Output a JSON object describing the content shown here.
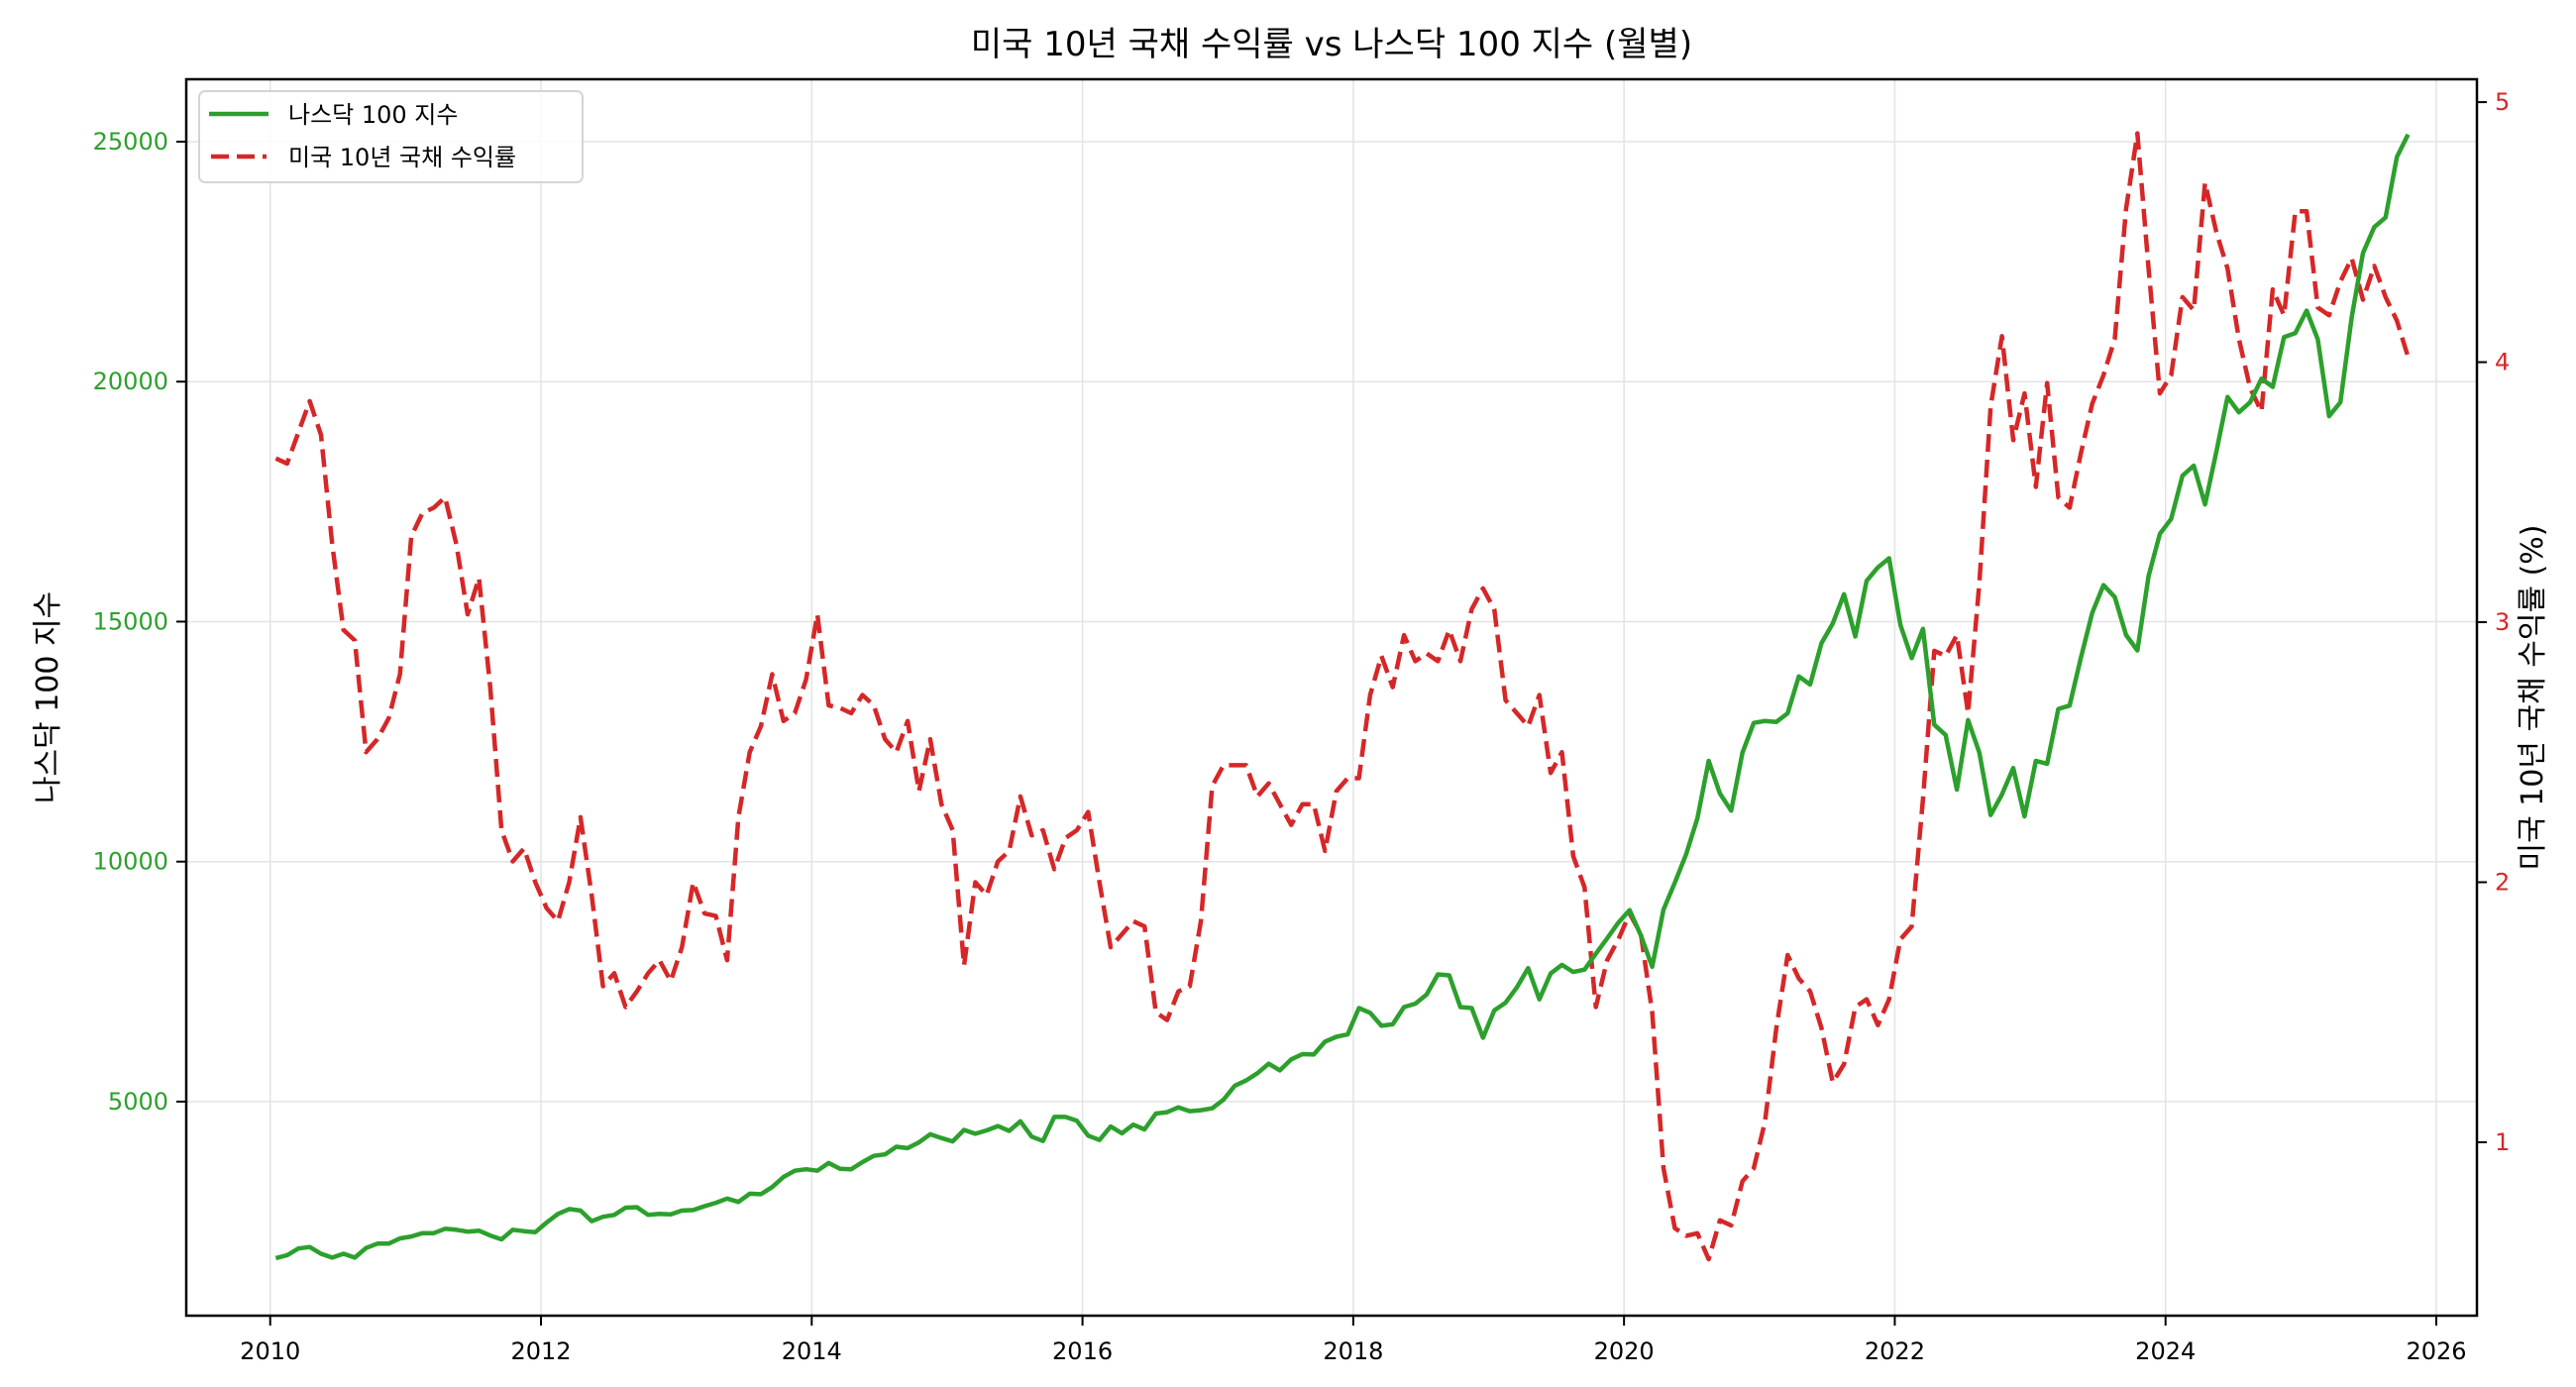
{
  "chart_data": {
    "type": "line",
    "title": "미국 10년 국채 수익률 vs 나스닥 100 지수 (월별)",
    "xlabel": "",
    "ylabel_left": "나스닥 100 지수",
    "ylabel_right": "미국 10년 국채 수익률 (%)",
    "x_start": "2010-01",
    "x_frequency": "monthly",
    "xlim": [
      2009.38,
      2026.3
    ],
    "ylim_left": [
      540,
      26300
    ],
    "ylim_right": [
      0.333,
      5.088
    ],
    "x_ticks": [
      2010,
      2012,
      2014,
      2016,
      2018,
      2020,
      2022,
      2024,
      2026
    ],
    "y_ticks_left": [
      5000,
      10000,
      15000,
      20000,
      25000
    ],
    "y_ticks_right": [
      1,
      2,
      3,
      4,
      5
    ],
    "grid": true,
    "legend_position": "upper left",
    "colors": {
      "nasdaq": "#2ca02c",
      "treasury": "#d62728"
    },
    "series": [
      {
        "name": "나스닥 100 지수",
        "axis": "left",
        "style": "solid",
        "color": "#2ca02c",
        "values": [
          1740,
          1800,
          1940,
          1970,
          1830,
          1750,
          1830,
          1750,
          1950,
          2040,
          2040,
          2150,
          2190,
          2260,
          2260,
          2350,
          2330,
          2290,
          2310,
          2210,
          2130,
          2330,
          2300,
          2280,
          2480,
          2660,
          2760,
          2730,
          2510,
          2600,
          2640,
          2790,
          2800,
          2640,
          2660,
          2650,
          2730,
          2740,
          2820,
          2890,
          2980,
          2910,
          3080,
          3070,
          3220,
          3430,
          3560,
          3590,
          3560,
          3720,
          3600,
          3590,
          3740,
          3870,
          3900,
          4060,
          4030,
          4150,
          4320,
          4240,
          4170,
          4410,
          4330,
          4400,
          4490,
          4390,
          4590,
          4270,
          4180,
          4680,
          4680,
          4600,
          4290,
          4200,
          4480,
          4340,
          4520,
          4420,
          4750,
          4780,
          4880,
          4800,
          4820,
          4860,
          5040,
          5330,
          5440,
          5590,
          5790,
          5650,
          5880,
          5990,
          5980,
          6250,
          6350,
          6400,
          6950,
          6850,
          6580,
          6610,
          6970,
          7040,
          7230,
          7650,
          7630,
          6970,
          6950,
          6330,
          6900,
          7060,
          7380,
          7780,
          7130,
          7670,
          7850,
          7700,
          7750,
          8080,
          8400,
          8730,
          8990,
          8460,
          7810,
          9000,
          9560,
          10150,
          10900,
          12100,
          11420,
          11060,
          12270,
          12890,
          12930,
          12910,
          13090,
          13860,
          13690,
          14550,
          14960,
          15570,
          14690,
          15850,
          16130,
          16320,
          14930,
          14240,
          14850,
          12850,
          12640,
          11500,
          12950,
          12270,
          10970,
          11400,
          11950,
          10940,
          12100,
          12040,
          13180,
          13250,
          14250,
          15180,
          15760,
          15510,
          14720,
          14400,
          15950,
          16830,
          17140,
          18040,
          18250,
          17440,
          18540,
          19680,
          19360,
          19570,
          20060,
          19890,
          20930,
          21010,
          21480,
          20880,
          19280,
          19570,
          21340,
          22680,
          23220,
          23420,
          24680,
          25150
        ]
      },
      {
        "name": "미국 10년 국채 수익률",
        "axis": "right",
        "style": "dashed",
        "color": "#d62728",
        "values": [
          3.63,
          3.61,
          3.73,
          3.85,
          3.72,
          3.3,
          2.97,
          2.93,
          2.5,
          2.55,
          2.63,
          2.8,
          3.33,
          3.42,
          3.44,
          3.48,
          3.3,
          3.03,
          3.17,
          2.75,
          2.2,
          2.08,
          2.13,
          2.0,
          1.9,
          1.85,
          2.0,
          2.25,
          1.95,
          1.6,
          1.65,
          1.52,
          1.58,
          1.65,
          1.7,
          1.62,
          1.75,
          2.0,
          1.88,
          1.87,
          1.7,
          2.25,
          2.5,
          2.6,
          2.8,
          2.62,
          2.65,
          2.78,
          3.03,
          2.68,
          2.67,
          2.65,
          2.72,
          2.68,
          2.55,
          2.5,
          2.62,
          2.35,
          2.55,
          2.3,
          2.2,
          1.68,
          2.0,
          1.95,
          2.08,
          2.12,
          2.33,
          2.18,
          2.2,
          2.05,
          2.17,
          2.2,
          2.27,
          2.0,
          1.75,
          1.8,
          1.85,
          1.83,
          1.5,
          1.47,
          1.58,
          1.6,
          1.85,
          2.37,
          2.45,
          2.45,
          2.45,
          2.33,
          2.38,
          2.3,
          2.22,
          2.3,
          2.3,
          2.12,
          2.35,
          2.4,
          2.4,
          2.72,
          2.87,
          2.75,
          2.95,
          2.85,
          2.88,
          2.85,
          2.97,
          2.85,
          3.05,
          3.13,
          3.05,
          2.7,
          2.65,
          2.6,
          2.72,
          2.42,
          2.5,
          2.1,
          1.98,
          1.52,
          1.7,
          1.78,
          1.88,
          1.8,
          1.5,
          0.9,
          0.67,
          0.64,
          0.65,
          0.55,
          0.7,
          0.68,
          0.85,
          0.9,
          1.08,
          1.44,
          1.72,
          1.63,
          1.58,
          1.44,
          1.23,
          1.3,
          1.52,
          1.55,
          1.45,
          1.55,
          1.78,
          1.83,
          2.32,
          2.89,
          2.87,
          2.95,
          2.65,
          3.15,
          3.83,
          4.1,
          3.7,
          3.88,
          3.52,
          3.92,
          3.48,
          3.44,
          3.65,
          3.84,
          3.95,
          4.09,
          4.59,
          4.88,
          4.36,
          3.88,
          3.95,
          4.25,
          4.2,
          4.69,
          4.5,
          4.36,
          4.09,
          3.9,
          3.81,
          4.28,
          4.18,
          4.58,
          4.58,
          4.21,
          4.18,
          4.31,
          4.4,
          4.24,
          4.37,
          4.25,
          4.16,
          4.02
        ]
      }
    ]
  },
  "legend": {
    "items": [
      {
        "label": "나스닥 100 지수",
        "color": "#2ca02c",
        "style": "solid"
      },
      {
        "label": "미국 10년 국채 수익률",
        "color": "#d62728",
        "style": "dashed"
      }
    ]
  },
  "axes": {
    "x_tick_labels": [
      "2010",
      "2012",
      "2014",
      "2016",
      "2018",
      "2020",
      "2022",
      "2024",
      "2026"
    ],
    "left_tick_labels": [
      "5000",
      "10000",
      "15000",
      "20000",
      "25000"
    ],
    "right_tick_labels": [
      "1",
      "2",
      "3",
      "4",
      "5"
    ]
  }
}
